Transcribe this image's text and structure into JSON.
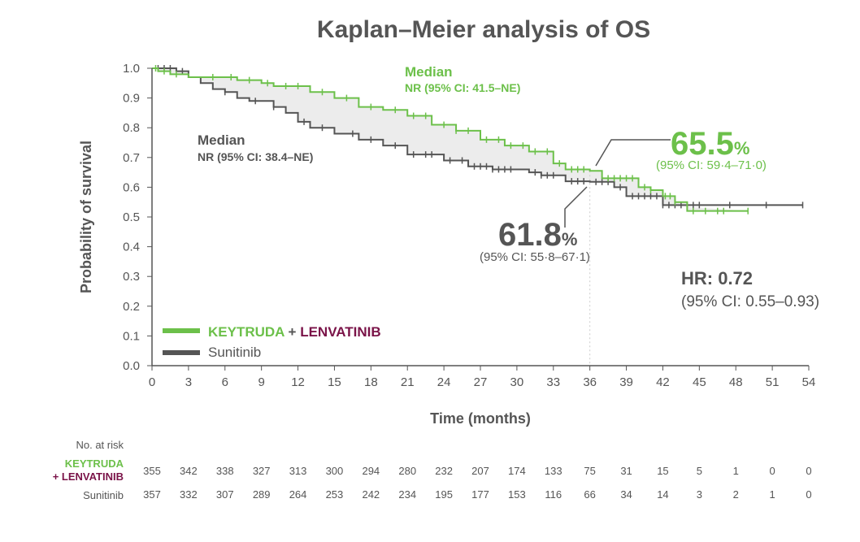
{
  "chart_data": {
    "type": "line",
    "subtype": "kaplan-meier",
    "title": "Kaplan–Meier analysis of OS",
    "xlabel": "Time (months)",
    "ylabel": "Probability of survival",
    "xlim": [
      0,
      54
    ],
    "ylim": [
      0,
      1.0
    ],
    "xticks": [
      0,
      3,
      6,
      9,
      12,
      15,
      18,
      21,
      24,
      27,
      30,
      33,
      36,
      39,
      42,
      45,
      48,
      51,
      54
    ],
    "yticks": [
      "0.0",
      "0.1",
      "0.2",
      "0.3",
      "0.4",
      "0.5",
      "0.6",
      "0.7",
      "0.8",
      "0.9",
      "1.0"
    ],
    "grid": false,
    "legend_placement": "bottom-left",
    "series": [
      {
        "name": "KEYTRUDA + LENVATINIB",
        "legend_part1": "KEYTRUDA",
        "legend_plus": "+",
        "legend_part2": "LENVATINIB",
        "color": "#6cc04a",
        "steps": [
          [
            0,
            1
          ],
          [
            0.5,
            0.99
          ],
          [
            1.5,
            0.98
          ],
          [
            3,
            0.97
          ],
          [
            7,
            0.96
          ],
          [
            9,
            0.95
          ],
          [
            10,
            0.94
          ],
          [
            13,
            0.92
          ],
          [
            15,
            0.9
          ],
          [
            17,
            0.87
          ],
          [
            19,
            0.86
          ],
          [
            21,
            0.84
          ],
          [
            23,
            0.81
          ],
          [
            25,
            0.79
          ],
          [
            27,
            0.76
          ],
          [
            29,
            0.74
          ],
          [
            31,
            0.72
          ],
          [
            33,
            0.68
          ],
          [
            34,
            0.66
          ],
          [
            36,
            0.655
          ],
          [
            37,
            0.63
          ],
          [
            40,
            0.6
          ],
          [
            41,
            0.59
          ],
          [
            42,
            0.57
          ],
          [
            43,
            0.55
          ],
          [
            44,
            0.52
          ],
          [
            49,
            0.52
          ]
        ],
        "censor_times": [
          0.3,
          1,
          2,
          5,
          6.5,
          8,
          9.5,
          11,
          12,
          14,
          16,
          18,
          20,
          21.5,
          22.5,
          24,
          25,
          26,
          27.5,
          28.5,
          29.5,
          30.5,
          31.5,
          32.5,
          33.5,
          34.5,
          35,
          35.5,
          37.5,
          38,
          38.5,
          39,
          39.5,
          40.5,
          41,
          42.2,
          42.6,
          43,
          44.5,
          45.5,
          46.5,
          47,
          49
        ]
      },
      {
        "name": "Sunitinib",
        "color": "#555555",
        "steps": [
          [
            0,
            1
          ],
          [
            1.5,
            1.0
          ],
          [
            2,
            0.99
          ],
          [
            3,
            0.97
          ],
          [
            4,
            0.95
          ],
          [
            5,
            0.93
          ],
          [
            6,
            0.92
          ],
          [
            7,
            0.9
          ],
          [
            8,
            0.89
          ],
          [
            10,
            0.87
          ],
          [
            11,
            0.85
          ],
          [
            12,
            0.82
          ],
          [
            13,
            0.8
          ],
          [
            15,
            0.78
          ],
          [
            17,
            0.76
          ],
          [
            19,
            0.74
          ],
          [
            21,
            0.71
          ],
          [
            24,
            0.69
          ],
          [
            26,
            0.67
          ],
          [
            28,
            0.66
          ],
          [
            31,
            0.65
          ],
          [
            32,
            0.64
          ],
          [
            34,
            0.62
          ],
          [
            36,
            0.618
          ],
          [
            38,
            0.6
          ],
          [
            39,
            0.57
          ],
          [
            42,
            0.54
          ],
          [
            53.5,
            0.54
          ]
        ],
        "censor_times": [
          0.5,
          1,
          1.5,
          2.5,
          6,
          8.5,
          10,
          12.5,
          14,
          16.5,
          18,
          20,
          21.5,
          22.5,
          23,
          24.5,
          25.5,
          26.5,
          27,
          27.5,
          28,
          28.5,
          29,
          29.5,
          31.5,
          32,
          32.5,
          33,
          34.5,
          35,
          35.5,
          36.5,
          37,
          37.5,
          38.5,
          39.5,
          40,
          40.5,
          41,
          41.5,
          42,
          42.5,
          43,
          43.5,
          44,
          44.5,
          45,
          47.5,
          50.5,
          53.5
        ]
      }
    ],
    "annotations": {
      "kl_median_title": "Median",
      "kl_median_value": "NR (95% CI: 41.5–NE)",
      "sun_median_title": "Median",
      "sun_median_value": "NR (95% CI: 38.4–NE)",
      "kl_36m_value": "65.5",
      "kl_36m_unit": "%",
      "kl_36m_ci": "(95% CI: 59·4–71·0)",
      "sun_36m_value": "61.8",
      "sun_36m_unit": "%",
      "sun_36m_ci": "(95% CI: 55·8–67·1)",
      "hr_label": "HR: 0.72",
      "hr_ci": "(95% CI: 0.55–0.93)"
    },
    "at_risk": {
      "header": "No. at risk",
      "rows": [
        {
          "label1": "KEYTRUDA",
          "label2": "+ LENVATINIB",
          "values": [
            355,
            342,
            338,
            327,
            313,
            300,
            294,
            280,
            232,
            207,
            174,
            133,
            75,
            31,
            15,
            5,
            1,
            0,
            0
          ]
        },
        {
          "label1": "Sunitinib",
          "values": [
            357,
            332,
            307,
            289,
            264,
            253,
            242,
            234,
            195,
            177,
            153,
            116,
            66,
            34,
            14,
            3,
            2,
            1,
            0
          ]
        }
      ]
    }
  },
  "colors": {
    "green": "#6cc04a",
    "gray": "#555555",
    "maroon": "#7a1348",
    "fill": "#ececec"
  }
}
